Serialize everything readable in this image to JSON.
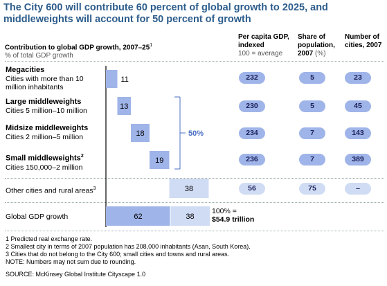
{
  "title": "The City 600 will contribute 60 percent of global growth to 2025, and middleweights will account for 50 percent of growth",
  "headers": {
    "contribution": "Contribution to global GDP growth, 2007–25",
    "contribution_sup": "1",
    "contribution_sub": "% of total GDP growth",
    "per_capita": "Per capita GDP, indexed",
    "per_capita_sub": "100 = average",
    "share": "Share of population, 2007",
    "share_sub": "(%)",
    "number": "Number of cities, 2007"
  },
  "rows": [
    {
      "title": "Megacities",
      "sub": "Cities with more than 10 million inhabitants",
      "per_capita": "232",
      "share": "5",
      "number": "23"
    },
    {
      "title": "Large middleweights",
      "sub": "Cities 5 million–10 million",
      "per_capita": "230",
      "share": "5",
      "number": "45"
    },
    {
      "title": "Midsize middleweights",
      "sub": "Cities 2 million–5 million",
      "per_capita": "234",
      "share": "7",
      "number": "143"
    },
    {
      "title": "Small middleweights",
      "title_sup": "2",
      "sub": "Cities 150,000–2 million",
      "per_capita": "236",
      "share": "7",
      "number": "389"
    },
    {
      "label": "Other cities and rural areas",
      "label_sup": "3",
      "per_capita": "56",
      "share": "75",
      "number": "–"
    },
    {
      "label": "Global GDP growth"
    }
  ],
  "bracket_label": "50%",
  "total_label": "100% =",
  "total_value": "$54.9 trillion",
  "footnotes": [
    "1  Predicted real exchange rate.",
    "2  Smallest city in terms of 2007 population has 208,000 inhabitants (Asan, South Korea).",
    "3  Cities that do not belong to the City 600; small cities and towns and rural areas.",
    "NOTE: Numbers may not sum due to rounding."
  ],
  "source": "SOURCE: McKinsey Global Institute Cityscape 1.0",
  "colors": {
    "dark_bar": "#9fb4e8",
    "light_bar": "#d0dcf4",
    "title": "#2d5d8c",
    "bracket": "#4a6fc4"
  },
  "chart_data": {
    "type": "bar",
    "subtype": "waterfall",
    "categories": [
      "Megacities",
      "Large middleweights",
      "Midsize middleweights",
      "Small middleweights",
      "Other cities and rural areas",
      "Global GDP growth"
    ],
    "values": [
      11,
      13,
      18,
      19,
      38,
      [
        62,
        38
      ]
    ],
    "value_labels": [
      "11",
      "13",
      "18",
      "19",
      "38",
      "62",
      "38"
    ],
    "ylabel": "% of total GDP growth",
    "xlim": [
      0,
      100
    ]
  }
}
